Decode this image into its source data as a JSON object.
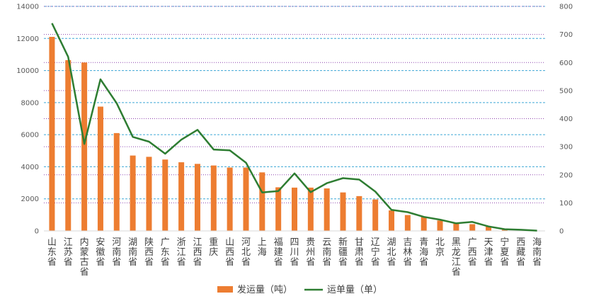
{
  "chart_data": {
    "type": "bar+line",
    "categories": [
      "山东省",
      "江苏省",
      "内蒙古省",
      "安徽省",
      "河南省",
      "湖南省",
      "陕西省",
      "广东省",
      "浙江省",
      "江西省",
      "重庆",
      "山西省",
      "河北省",
      "上海",
      "福建省",
      "四川省",
      "贵州省",
      "云南省",
      "新疆省",
      "甘肃省",
      "辽宁省",
      "湖北省",
      "吉林省",
      "青海省",
      "北京",
      "黑龙江省",
      "广西省",
      "天津省",
      "宁夏省",
      "西藏省",
      "海南省"
    ],
    "series": [
      {
        "name": "发运量（吨）",
        "type": "bar",
        "axis": "left",
        "color": "#ED7D31",
        "values": [
          12100,
          10650,
          10500,
          7750,
          6100,
          4700,
          4620,
          4450,
          4280,
          4180,
          4080,
          3950,
          3950,
          3650,
          2720,
          2700,
          2700,
          2650,
          2400,
          2170,
          1960,
          1280,
          990,
          870,
          650,
          480,
          420,
          270,
          80,
          30,
          20
        ]
      },
      {
        "name": "运单量（单）",
        "type": "line",
        "axis": "right",
        "color": "#2E7D32",
        "values": [
          740,
          620,
          310,
          540,
          455,
          335,
          318,
          275,
          325,
          360,
          290,
          287,
          243,
          137,
          142,
          205,
          138,
          170,
          188,
          183,
          140,
          75,
          67,
          50,
          40,
          27,
          32,
          16,
          6,
          4,
          1
        ]
      }
    ],
    "y_left": {
      "min": 0,
      "max": 14000,
      "ticks": [
        0,
        2000,
        4000,
        6000,
        8000,
        10000,
        12000,
        14000
      ]
    },
    "y_right": {
      "min": 0,
      "max": 800,
      "ticks": [
        0,
        100,
        200,
        300,
        400,
        500,
        600,
        700,
        800
      ]
    },
    "grid": true,
    "legend_position": "bottom"
  }
}
